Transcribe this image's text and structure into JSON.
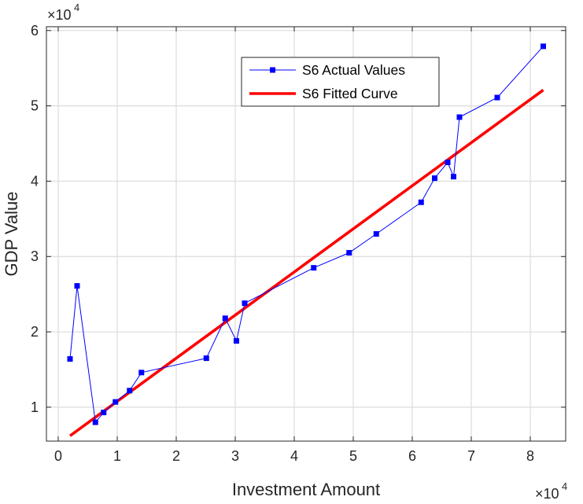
{
  "chart_data": {
    "type": "line",
    "xlabel": "Investment Amount",
    "ylabel": "GDP Value",
    "xlim": [
      -0.2,
      8.6
    ],
    "ylim": [
      0.55,
      6.05
    ],
    "x_multiplier_label": "×10",
    "x_multiplier_exp": "4",
    "y_multiplier_label": "×10",
    "y_multiplier_exp": "4",
    "x_ticks": [
      0,
      1,
      2,
      3,
      4,
      5,
      6,
      7,
      8
    ],
    "x_tick_labels": [
      "0",
      "1",
      "2",
      "3",
      "4",
      "5",
      "6",
      "7",
      "8"
    ],
    "y_ticks": [
      1,
      2,
      3,
      4,
      5,
      6
    ],
    "y_tick_labels": [
      "1",
      "2",
      "3",
      "4",
      "5",
      "6"
    ],
    "grid": true,
    "legend_position": "top-center",
    "series": [
      {
        "name": "S6 Actual Values",
        "style": "line-with-square-markers",
        "color": "#0000ff",
        "x": [
          0.2,
          0.32,
          0.63,
          0.77,
          0.97,
          1.21,
          1.41,
          2.51,
          2.83,
          3.02,
          3.16,
          4.33,
          4.93,
          5.39,
          6.15,
          6.38,
          6.6,
          6.7,
          6.8,
          7.44,
          8.22
        ],
        "y": [
          1.64,
          2.61,
          0.8,
          0.93,
          1.07,
          1.22,
          1.46,
          1.65,
          2.18,
          1.88,
          2.38,
          2.85,
          3.05,
          3.3,
          3.72,
          4.04,
          4.25,
          4.06,
          4.85,
          5.11,
          5.79
        ]
      },
      {
        "name": "S6 Fitted Curve",
        "style": "thick-line",
        "color": "#ff0000",
        "x": [
          0.2,
          8.22
        ],
        "y": [
          0.62,
          5.21
        ]
      }
    ]
  }
}
